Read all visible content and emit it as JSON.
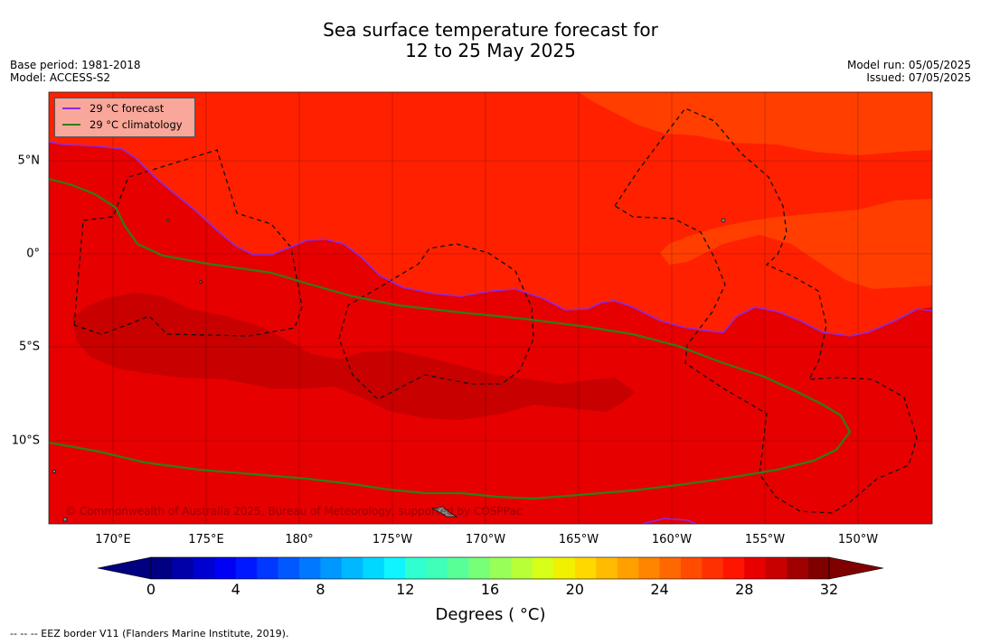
{
  "title": {
    "line1": "Sea surface temperature forecast for",
    "line2": "12 to 25 May 2025"
  },
  "meta": {
    "base_period": "Base period: 1981-2018",
    "model": "Model: ACCESS-S2",
    "model_run": "Model run: 05/05/2025",
    "issued": "Issued: 07/05/2025"
  },
  "legend": {
    "forecast_label": "29 °C  forecast",
    "climatology_label": "29 °C  climatology",
    "forecast_color": "#8a2be2",
    "climatology_color": "#2e7d1a"
  },
  "map": {
    "copyright": "© Commonwealth of Australia 2025, Bureau of Meteorology, supported by COSPPac",
    "lon_labels": [
      "170°E",
      "175°E",
      "180°",
      "175°W",
      "170°W",
      "165°W",
      "160°W",
      "155°W",
      "150°W"
    ],
    "lat_labels": [
      "5°N",
      "0°",
      "5°S",
      "10°S"
    ],
    "colors": {
      "sst_29_30": "#e60000",
      "sst_30_31": "#c80000",
      "sst_28_29": "#ff2000",
      "sst_27_28": "#ff3e00",
      "sst_26_27": "#ff5a00"
    }
  },
  "colorbar": {
    "tick_labels": [
      "0",
      "4",
      "8",
      "12",
      "16",
      "20",
      "24",
      "28",
      "32"
    ],
    "title": "Degrees ( °C)",
    "colors": [
      "#000080",
      "#0000a8",
      "#0000cf",
      "#0000f5",
      "#0018ff",
      "#0038ff",
      "#0058ff",
      "#0078ff",
      "#0098ff",
      "#00b8ff",
      "#00d8ff",
      "#10f4ff",
      "#30ffd0",
      "#40ffb8",
      "#58ff98",
      "#78ff78",
      "#98ff58",
      "#b8ff38",
      "#d8ff18",
      "#f0f000",
      "#ffd800",
      "#ffbc00",
      "#ffa000",
      "#ff8400",
      "#ff6800",
      "#ff4c00",
      "#ff3000",
      "#ff1400",
      "#e80000",
      "#c80000",
      "#a00000",
      "#800000"
    ]
  },
  "footnote": "--  --  -- EEZ border V11 (Flanders Marine Institute, 2019)."
}
